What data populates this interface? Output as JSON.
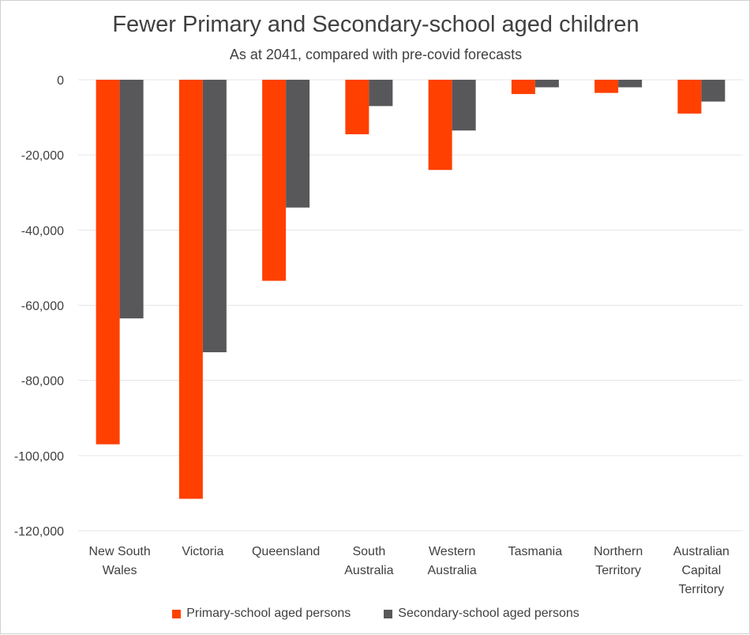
{
  "chart_data": {
    "type": "bar",
    "title": "Fewer Primary and Secondary-school aged children",
    "subtitle": "As at 2041, compared with pre-covid forecasts",
    "xlabel": "",
    "ylabel": "",
    "ylim": [
      -120000,
      0
    ],
    "y_ticks": [
      0,
      -20000,
      -40000,
      -60000,
      -80000,
      -100000,
      -120000
    ],
    "y_tick_labels": [
      "0",
      "-20,000",
      "-40,000",
      "-60,000",
      "-80,000",
      "-100,000",
      "-120,000"
    ],
    "grid": true,
    "legend_position": "bottom",
    "categories": [
      [
        "New South",
        "Wales"
      ],
      [
        "Victoria"
      ],
      [
        "Queensland"
      ],
      [
        "South",
        "Australia"
      ],
      [
        "Western",
        "Australia"
      ],
      [
        "Tasmania"
      ],
      [
        "Northern",
        "Territory"
      ],
      [
        "Australian",
        "Capital",
        "Territory"
      ]
    ],
    "series": [
      {
        "name": "Primary-school aged persons",
        "color": "#ff4000",
        "values": [
          -97000,
          -111500,
          -53500,
          -14500,
          -24000,
          -3800,
          -3500,
          -9000
        ]
      },
      {
        "name": "Secondary-school aged persons",
        "color": "#58585b",
        "values": [
          -63500,
          -72500,
          -34000,
          -7000,
          -13500,
          -2000,
          -2000,
          -5800
        ]
      }
    ]
  }
}
